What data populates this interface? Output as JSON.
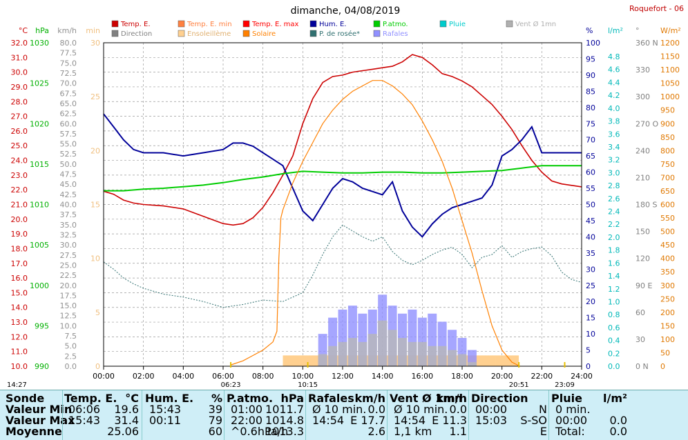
{
  "chart_data": {
    "type": "line",
    "title": "dimanche, 04/08/2019",
    "station": "Roquefort - 06",
    "x_ticks": [
      "00:00",
      "02:00",
      "04:00",
      "06:00",
      "08:00",
      "10:00",
      "12:00",
      "14:00",
      "16:00",
      "18:00",
      "20:00",
      "22:00",
      "24:00"
    ],
    "markers": {
      "now": "14:27",
      "sunrise": "06:23",
      "solar_noon": "10:15",
      "sunset": "20:51",
      "extra": "23:09"
    },
    "legend": [
      {
        "label": "Temp. E.",
        "color": "#cc0000"
      },
      {
        "label": "Temp. E. min",
        "color": "#ff8040"
      },
      {
        "label": "Temp. E. max",
        "color": "#ff0000"
      },
      {
        "label": "Hum. E.",
        "color": "#000099"
      },
      {
        "label": "P.atmo.",
        "color": "#00cc00"
      },
      {
        "label": "Pluie",
        "color": "#00cccc"
      },
      {
        "label": "Vent Ø 1mn",
        "color": "#b0b0b0"
      },
      {
        "label": "Direction",
        "color": "#808080"
      },
      {
        "label": "Ensoleillème",
        "color": "#ffd090"
      },
      {
        "label": "Solaire",
        "color": "#ff8000"
      },
      {
        "label": "P. de rosée*",
        "color": "#307070"
      },
      {
        "label": "Rafales",
        "color": "#9090ff"
      }
    ],
    "axes": {
      "temp": {
        "unit": "°C",
        "range": [
          10,
          32
        ],
        "ticks": [
          "32.0",
          "31.0",
          "30.0",
          "29.0",
          "28.0",
          "27.0",
          "26.0",
          "25.0",
          "24.0",
          "23.0",
          "22.0",
          "21.0",
          "20.0",
          "19.0",
          "18.0",
          "17.0",
          "16.0",
          "15.0",
          "14.0",
          "13.0",
          "12.0",
          "11.0",
          "10.0"
        ]
      },
      "pressure": {
        "unit": "hPa",
        "range": [
          990,
          1030
        ],
        "ticks": [
          "1030",
          "1025",
          "1020",
          "1015",
          "1010",
          "1005",
          "1000",
          "995",
          "990"
        ]
      },
      "wind": {
        "unit": "km/h",
        "range": [
          0,
          80
        ],
        "ticks": [
          "80.0",
          "77.5",
          "75.0",
          "72.5",
          "70.0",
          "67.5",
          "65.0",
          "62.5",
          "60.0",
          "57.5",
          "55.0",
          "52.5",
          "50.0",
          "47.5",
          "45.0",
          "42.5",
          "40.0",
          "37.5",
          "35.0",
          "32.5",
          "30.0",
          "27.5",
          "25.0",
          "22.5",
          "20.0",
          "17.5",
          "15.0",
          "12.5",
          "10.0",
          "7.5",
          "5.0",
          "2.5",
          "0.0"
        ]
      },
      "minutes": {
        "unit": "min",
        "range": [
          0,
          30
        ],
        "ticks": [
          "30",
          "25",
          "20",
          "15",
          "10",
          "5",
          "0"
        ]
      },
      "humidity": {
        "unit": "%",
        "range": [
          0,
          100
        ],
        "ticks": [
          "100",
          "95",
          "90",
          "85",
          "80",
          "75",
          "70",
          "65",
          "60",
          "55",
          "50",
          "45",
          "40",
          "35",
          "30",
          "25",
          "20",
          "15",
          "10",
          "5",
          "0"
        ]
      },
      "rain": {
        "unit": "l/m²",
        "range": [
          0,
          5
        ],
        "ticks": [
          "4.8",
          "4.6",
          "4.4",
          "4.2",
          "4.0",
          "3.8",
          "3.6",
          "3.4",
          "3.2",
          "3.0",
          "2.8",
          "2.6",
          "2.4",
          "2.2",
          "2.0",
          "1.8",
          "1.6",
          "1.4",
          "1.2",
          "1.0",
          "0.8",
          "0.6",
          "0.4",
          "0.2",
          "0.0"
        ]
      },
      "direction": {
        "unit": "°",
        "range": [
          0,
          360
        ],
        "ticks": [
          "360 N",
          "330",
          "300",
          "270 O",
          "240",
          "210",
          "180 S",
          "150",
          "120",
          "90 E",
          "60",
          "30",
          "0 N"
        ]
      },
      "solar": {
        "unit": "W/m²",
        "range": [
          0,
          1200
        ],
        "ticks": [
          "1200",
          "1150",
          "1100",
          "1050",
          "1000",
          "950",
          "900",
          "850",
          "800",
          "750",
          "700",
          "650",
          "600",
          "550",
          "500",
          "450",
          "400",
          "350",
          "300",
          "250",
          "200",
          "150",
          "100",
          "50",
          "0"
        ]
      }
    },
    "series": [
      {
        "name": "Temp. E.",
        "axis": "temp",
        "x": [
          0,
          0.5,
          1,
          1.5,
          2,
          3,
          4,
          5,
          6,
          6.5,
          7,
          7.5,
          8,
          8.5,
          9,
          9.5,
          10,
          10.5,
          11,
          11.5,
          12,
          12.5,
          13,
          13.5,
          14,
          14.5,
          15,
          15.5,
          16,
          16.5,
          17,
          17.5,
          18,
          18.5,
          19,
          19.5,
          20,
          20.5,
          21,
          21.5,
          22,
          22.5,
          23,
          23.5,
          24
        ],
        "y": [
          21.9,
          21.7,
          21.3,
          21.1,
          21.0,
          20.9,
          20.7,
          20.2,
          19.7,
          19.6,
          19.7,
          20.1,
          20.8,
          21.8,
          23.0,
          24.3,
          26.5,
          28.2,
          29.3,
          29.7,
          29.8,
          30.0,
          30.1,
          30.2,
          30.3,
          30.4,
          30.7,
          31.2,
          31.0,
          30.5,
          29.9,
          29.7,
          29.4,
          29.0,
          28.4,
          27.8,
          27.0,
          26.1,
          25.0,
          24.0,
          23.2,
          22.6,
          22.4,
          22.3,
          22.2
        ]
      },
      {
        "name": "Hum. E.",
        "axis": "humidity",
        "x": [
          0,
          0.5,
          1,
          1.5,
          2,
          3,
          4,
          5,
          6,
          6.5,
          7,
          7.5,
          8,
          8.5,
          9,
          9.5,
          10,
          10.5,
          11,
          11.5,
          12,
          12.5,
          13,
          13.5,
          14,
          14.5,
          15,
          15.5,
          16,
          16.5,
          17,
          17.5,
          18,
          18.5,
          19,
          19.5,
          20,
          20.5,
          21,
          21.5,
          22,
          22.5,
          23,
          23.5,
          24
        ],
        "y": [
          78,
          74,
          70,
          67,
          66,
          66,
          65,
          66,
          67,
          69,
          69,
          68,
          66,
          64,
          62,
          55,
          48,
          45,
          50,
          55,
          58,
          57,
          55,
          54,
          53,
          57,
          48,
          43,
          40,
          44,
          47,
          49,
          50,
          51,
          52,
          56,
          65,
          67,
          70,
          74,
          66,
          66,
          66,
          66,
          66
        ]
      },
      {
        "name": "P.atmo.",
        "axis": "pressure",
        "x": [
          0,
          1,
          2,
          3,
          4,
          5,
          6,
          7,
          8,
          9,
          10,
          11,
          12,
          13,
          14,
          15,
          16,
          17,
          18,
          19,
          20,
          21,
          22,
          23,
          24
        ],
        "y": [
          1011.7,
          1011.7,
          1011.9,
          1012.0,
          1012.2,
          1012.4,
          1012.7,
          1013.1,
          1013.4,
          1013.8,
          1014.1,
          1014.0,
          1013.9,
          1013.9,
          1014.0,
          1014.0,
          1013.9,
          1013.9,
          1014.0,
          1014.1,
          1014.2,
          1014.5,
          1014.8,
          1014.8,
          1014.8
        ]
      },
      {
        "name": "P. de rosée*",
        "axis": "temp",
        "x": [
          0,
          0.5,
          1,
          1.5,
          2,
          3,
          4,
          5,
          6,
          7,
          8,
          9,
          10,
          10.5,
          11,
          11.5,
          12,
          12.5,
          13,
          13.5,
          14,
          14.5,
          15,
          15.5,
          16,
          16.5,
          17,
          17.5,
          18,
          18.5,
          19,
          19.5,
          20,
          20.5,
          21,
          21.5,
          22,
          22.5,
          23,
          23.5,
          24
        ],
        "y": [
          17.1,
          16.6,
          16.0,
          15.6,
          15.3,
          14.9,
          14.7,
          14.4,
          14.0,
          14.2,
          14.5,
          14.4,
          15.0,
          16.2,
          17.6,
          18.8,
          19.6,
          19.2,
          18.8,
          18.5,
          18.8,
          17.8,
          17.2,
          16.9,
          17.2,
          17.6,
          17.9,
          18.1,
          17.6,
          16.7,
          17.4,
          17.6,
          18.2,
          17.4,
          17.8,
          18.0,
          18.1,
          17.5,
          16.4,
          15.9,
          15.7
        ]
      },
      {
        "name": "Solaire",
        "axis": "solar",
        "x": [
          6.4,
          7,
          7.5,
          8,
          8.5,
          8.7,
          8.8,
          8.9,
          9,
          9.5,
          10,
          10.5,
          11,
          11.5,
          12,
          12.5,
          13,
          13.5,
          14,
          14.5,
          15,
          15.5,
          16,
          16.5,
          17,
          17.5,
          18,
          18.5,
          19,
          19.5,
          20,
          20.5,
          20.9
        ],
        "y": [
          5,
          20,
          40,
          60,
          90,
          130,
          400,
          550,
          580,
          680,
          760,
          830,
          900,
          950,
          990,
          1020,
          1040,
          1060,
          1060,
          1040,
          1010,
          970,
          910,
          840,
          760,
          660,
          540,
          420,
          280,
          150,
          60,
          15,
          0
        ]
      },
      {
        "name": "Rafales",
        "axis": "wind",
        "x": [
          11,
          11.5,
          12,
          12.5,
          13,
          13.5,
          14,
          14.5,
          15,
          15.5,
          16,
          16.5,
          17,
          17.5,
          18,
          18.5
        ],
        "y": [
          8,
          12,
          14,
          15,
          13,
          14,
          17.7,
          15,
          13,
          14,
          12,
          13,
          11,
          9,
          7,
          4
        ]
      },
      {
        "name": "Vent Ø 1mn",
        "axis": "wind",
        "x": [
          11,
          11.5,
          12,
          12.5,
          13,
          13.5,
          14,
          14.5,
          15,
          15.5,
          16,
          16.5,
          17,
          17.5,
          18,
          18.5
        ],
        "y": [
          3,
          5,
          6,
          7,
          6,
          8,
          11.3,
          9,
          7,
          6,
          6,
          5,
          5,
          4,
          3,
          1
        ]
      }
    ]
  },
  "stats": {
    "headers": [
      "Sonde",
      "Temp. E.",
      "°C",
      "Hum. E.",
      "%",
      "P.atmo.",
      "hPa",
      "Rafales",
      "km/h",
      "Vent Ø 1mn",
      "km/h",
      "Direction",
      "Pluie",
      "l/m²"
    ],
    "rows": [
      {
        "label": "Valeur Min",
        "temp": [
          "06:06",
          "19.6"
        ],
        "hum": [
          "15:43",
          "39"
        ],
        "press": [
          "01:00",
          "1011.7"
        ],
        "gust": [
          "Ø 10 min.",
          "0.0"
        ],
        "wind": [
          "Ø 10 min.",
          "0.0"
        ],
        "dir": [
          "00:00",
          "N"
        ],
        "rain": [
          "0 min.",
          ""
        ]
      },
      {
        "label": "Valeur Max",
        "temp": [
          "15:43",
          "31.4"
        ],
        "hum": [
          "00:11",
          "79"
        ],
        "press": [
          "22:00",
          "1014.8"
        ],
        "gust": [
          "14:54",
          "E 17.7"
        ],
        "wind": [
          "14:54",
          "E 11.3"
        ],
        "dir": [
          "15:03",
          "S-SO"
        ],
        "rain": [
          "00:00",
          "0.0"
        ]
      },
      {
        "label": "Moyenne",
        "temp": [
          "",
          "25.06"
        ],
        "hum": [
          "",
          "60"
        ],
        "press": [
          "^0.6hPa/h",
          "1013.3"
        ],
        "gust": [
          "",
          "2.6"
        ],
        "wind": [
          "1,1 km",
          "1.1"
        ],
        "dir": [
          "",
          "E"
        ],
        "rain": [
          "Total:",
          "0.0"
        ]
      }
    ]
  }
}
